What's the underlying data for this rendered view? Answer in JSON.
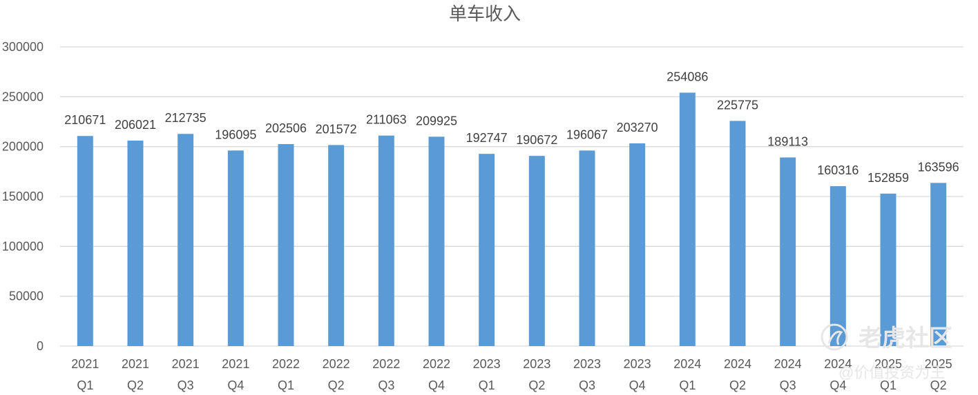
{
  "chart_data": {
    "type": "bar",
    "title": "单车收入",
    "xlabel": "",
    "ylabel": "",
    "ylim": [
      0,
      300000
    ],
    "yticks": [
      0,
      50000,
      100000,
      150000,
      200000,
      250000,
      300000
    ],
    "grid": true,
    "legend": "none",
    "bar_color": "#5b9bd5",
    "categories": [
      [
        "2021",
        "Q1"
      ],
      [
        "2021",
        "Q2"
      ],
      [
        "2021",
        "Q3"
      ],
      [
        "2021",
        "Q4"
      ],
      [
        "2022",
        "Q1"
      ],
      [
        "2022",
        "Q2"
      ],
      [
        "2022",
        "Q3"
      ],
      [
        "2022",
        "Q4"
      ],
      [
        "2023",
        "Q1"
      ],
      [
        "2023",
        "Q2"
      ],
      [
        "2023",
        "Q3"
      ],
      [
        "2023",
        "Q4"
      ],
      [
        "2024",
        "Q1"
      ],
      [
        "2024",
        "Q2"
      ],
      [
        "2024",
        "Q3"
      ],
      [
        "2024",
        "Q4"
      ],
      [
        "2025",
        "Q1"
      ],
      [
        "2025",
        "Q2"
      ]
    ],
    "values": [
      210671,
      206021,
      212735,
      196095,
      202506,
      201572,
      211063,
      209925,
      192747,
      190672,
      196067,
      203270,
      254086,
      225775,
      189113,
      160316,
      152859,
      163596
    ]
  },
  "watermark": {
    "brand": "老虎社区",
    "sub": "@价值投资为王"
  }
}
